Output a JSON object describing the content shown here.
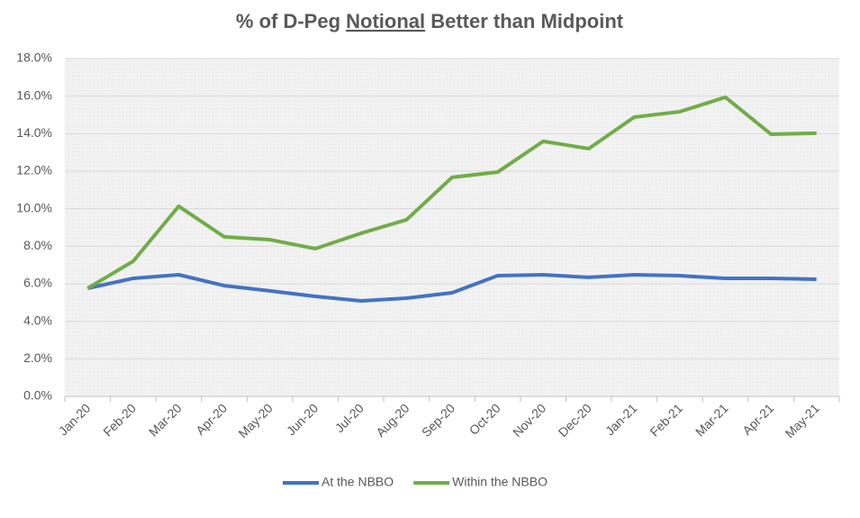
{
  "chart_data": {
    "type": "line",
    "title": "% of D-Peg Notional Better than Midpoint",
    "title_underline": "Notional",
    "categories": [
      "Jan-20",
      "Feb-20",
      "Mar-20",
      "Apr-20",
      "May-20",
      "Jun-20",
      "Jul-20",
      "Aug-20",
      "Sep-20",
      "Oct-20",
      "Nov-20",
      "Dec-20",
      "Jan-21",
      "Feb-21",
      "Mar-21",
      "Apr-21",
      "May-21"
    ],
    "series": [
      {
        "name": "At the NBBO",
        "color": "#4472c4",
        "values": [
          5.76,
          6.29,
          6.48,
          5.9,
          5.62,
          5.33,
          5.09,
          5.23,
          5.52,
          6.43,
          6.48,
          6.34,
          6.48,
          6.43,
          6.29,
          6.29,
          6.24
        ]
      },
      {
        "name": "Within the NBBO",
        "color": "#70ad47",
        "values": [
          5.76,
          7.2,
          10.13,
          8.5,
          8.35,
          7.87,
          8.69,
          9.41,
          11.67,
          11.95,
          13.59,
          13.2,
          14.88,
          15.17,
          15.94,
          13.97,
          14.02
        ]
      }
    ],
    "ylim": [
      0,
      18
    ],
    "yticks": [
      {
        "value": 0,
        "label": "0.0%"
      },
      {
        "value": 2,
        "label": "2.0%"
      },
      {
        "value": 4,
        "label": "4.0%"
      },
      {
        "value": 6,
        "label": "6.0%"
      },
      {
        "value": 8,
        "label": "8.0%"
      },
      {
        "value": 10,
        "label": "10.0%"
      },
      {
        "value": 12,
        "label": "12.0%"
      },
      {
        "value": 14,
        "label": "14.0%"
      },
      {
        "value": 16,
        "label": "16.0%"
      },
      {
        "value": 18,
        "label": "18.0%"
      }
    ],
    "grid": true,
    "legend": "bottom"
  }
}
